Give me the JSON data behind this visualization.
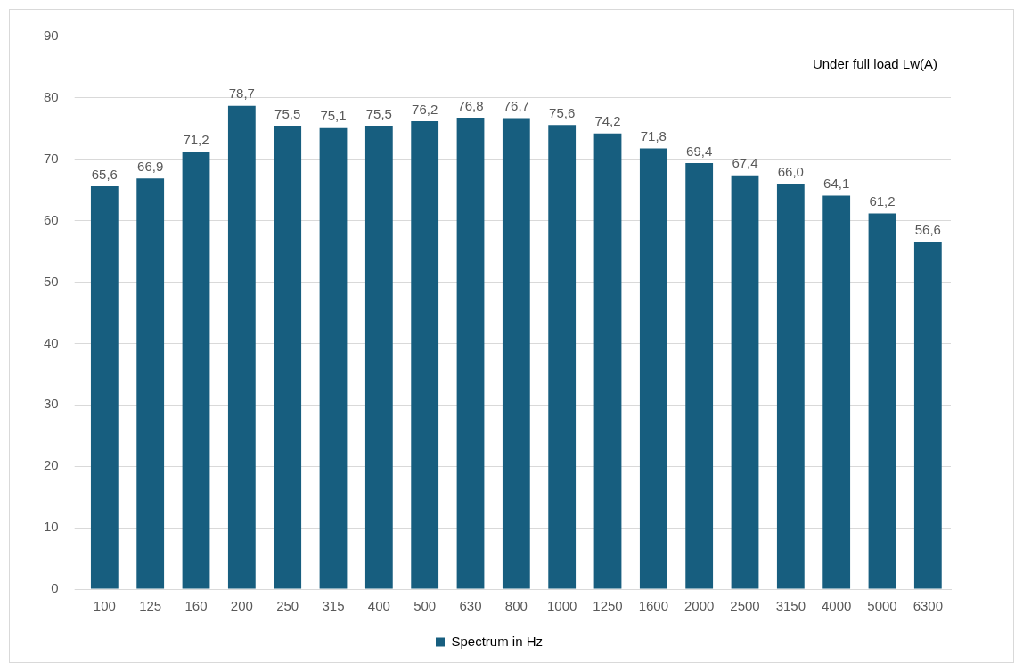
{
  "chart_data": {
    "type": "bar",
    "categories": [
      "100",
      "125",
      "160",
      "200",
      "250",
      "315",
      "400",
      "500",
      "630",
      "800",
      "1000",
      "1250",
      "1600",
      "2000",
      "2500",
      "3150",
      "4000",
      "5000",
      "6300"
    ],
    "series": [
      {
        "name": "Spectrum in Hz",
        "color": "#175e7f",
        "values": [
          65.6,
          66.9,
          71.2,
          78.7,
          75.5,
          75.1,
          75.5,
          76.2,
          76.8,
          76.7,
          75.6,
          74.2,
          71.8,
          69.4,
          67.4,
          66.0,
          64.1,
          61.2,
          56.6
        ],
        "value_labels": [
          "65,6",
          "66,9",
          "71,2",
          "78,7",
          "75,5",
          "75,1",
          "75,5",
          "76,2",
          "76,8",
          "76,7",
          "75,6",
          "74,2",
          "71,8",
          "69,4",
          "67,4",
          "66,0",
          "64,1",
          "61,2",
          "56,6"
        ]
      }
    ],
    "ylim": [
      0,
      90
    ],
    "yticks": [
      0,
      10,
      20,
      30,
      40,
      50,
      60,
      70,
      80,
      90
    ],
    "grid": "y",
    "legend": "bottom",
    "annotations": [
      "Under full load Lw(A)"
    ]
  }
}
